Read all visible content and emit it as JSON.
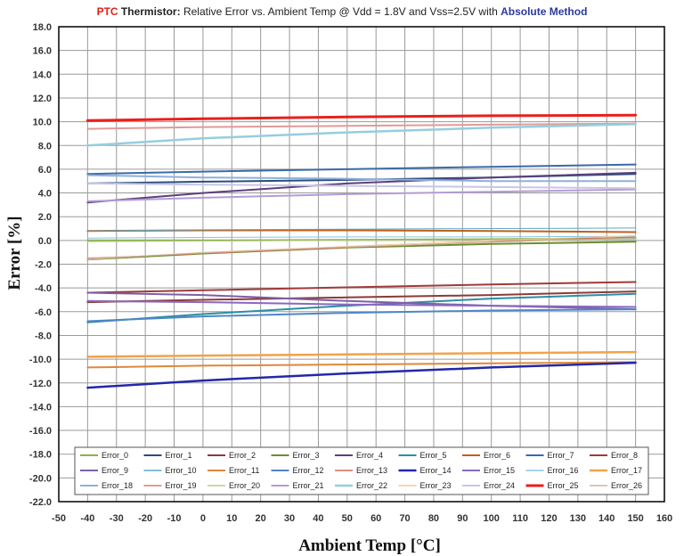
{
  "title": {
    "part1": "PTC",
    "part2": "Thermistor:",
    "part3": " Relative Error vs. Ambient Temp @ Vdd = 1.8V and Vss=2.5V with ",
    "part4": "Absolute Method"
  },
  "chart_data": {
    "type": "line",
    "xlabel": "Ambient Temp [°C]",
    "ylabel": "Error [%]",
    "xlim": [
      -50,
      160
    ],
    "ylim": [
      -22,
      18
    ],
    "x_ticks": [
      "-50",
      "-40",
      "-30",
      "-20",
      "-10",
      "0",
      "10",
      "20",
      "30",
      "40",
      "50",
      "60",
      "70",
      "80",
      "90",
      "100",
      "110",
      "120",
      "130",
      "140",
      "150",
      "160"
    ],
    "y_ticks": [
      "18.0",
      "16.0",
      "14.0",
      "12.0",
      "10.0",
      "8.0",
      "6.0",
      "4.0",
      "2.0",
      "0.0",
      "-2.0",
      "-4.0",
      "-6.0",
      "-8.0",
      "-10.0",
      "-12.0",
      "-14.0",
      "-16.0",
      "-18.0",
      "-20.0",
      "-22.0"
    ],
    "grid": true,
    "legend_position": "bottom",
    "x": [
      -40,
      0,
      50,
      100,
      150
    ],
    "series": [
      {
        "name": "Error_0",
        "color": "#8db04a",
        "width": 2,
        "values": [
          0.0,
          0.0,
          0.05,
          0.1,
          0.2
        ]
      },
      {
        "name": "Error_1",
        "color": "#2a4c7d",
        "width": 2,
        "values": [
          4.8,
          4.95,
          5.1,
          5.3,
          5.6
        ]
      },
      {
        "name": "Error_2",
        "color": "#8b3a3a",
        "width": 2,
        "values": [
          -5.2,
          -5.0,
          -4.8,
          -4.6,
          -4.3
        ]
      },
      {
        "name": "Error_3",
        "color": "#6a8e2e",
        "width": 2,
        "values": [
          -1.6,
          -1.1,
          -0.6,
          -0.3,
          -0.1
        ]
      },
      {
        "name": "Error_4",
        "color": "#5c3f7e",
        "width": 2,
        "values": [
          3.2,
          4.0,
          4.8,
          5.3,
          5.7
        ]
      },
      {
        "name": "Error_5",
        "color": "#2d8ea3",
        "width": 2,
        "values": [
          -6.9,
          -6.2,
          -5.5,
          -4.9,
          -4.5
        ]
      },
      {
        "name": "Error_6",
        "color": "#c0601f",
        "width": 2,
        "values": [
          0.8,
          0.85,
          0.85,
          0.8,
          0.7
        ]
      },
      {
        "name": "Error_7",
        "color": "#3b6aa8",
        "width": 2,
        "values": [
          5.6,
          5.8,
          6.0,
          6.2,
          6.4
        ]
      },
      {
        "name": "Error_8",
        "color": "#a03a3a",
        "width": 2,
        "values": [
          -4.4,
          -4.2,
          -3.95,
          -3.7,
          -3.5
        ]
      },
      {
        "name": "Error_9",
        "color": "#7f5fa8",
        "width": 2,
        "values": [
          -4.4,
          -4.6,
          -5.1,
          -5.5,
          -5.8
        ]
      },
      {
        "name": "Error_10",
        "color": "#5aa9c6",
        "width": 1,
        "values": [
          0.8,
          0.9,
          0.95,
          1.0,
          1.05
        ]
      },
      {
        "name": "Error_11",
        "color": "#e0873a",
        "width": 2,
        "values": [
          -10.7,
          -10.55,
          -10.45,
          -10.35,
          -10.25
        ]
      },
      {
        "name": "Error_12",
        "color": "#4f86c6",
        "width": 2,
        "values": [
          -6.8,
          -6.4,
          -6.1,
          -5.9,
          -5.8
        ]
      },
      {
        "name": "Error_13",
        "color": "#d96a5a",
        "width": 1,
        "values": [
          -1.5,
          -1.1,
          -0.6,
          -0.1,
          0.3
        ]
      },
      {
        "name": "Error_14",
        "color": "#2328a8",
        "width": 2.5,
        "values": [
          -12.4,
          -11.8,
          -11.2,
          -10.7,
          -10.3
        ]
      },
      {
        "name": "Error_15",
        "color": "#8a68c0",
        "width": 2,
        "values": [
          -5.1,
          -5.2,
          -5.4,
          -5.5,
          -5.6
        ]
      },
      {
        "name": "Error_16",
        "color": "#88c5de",
        "width": 1,
        "values": [
          0.2,
          0.25,
          0.3,
          0.3,
          0.35
        ]
      },
      {
        "name": "Error_17",
        "color": "#f2a24a",
        "width": 2.5,
        "values": [
          -9.8,
          -9.7,
          -9.6,
          -9.5,
          -9.4
        ]
      },
      {
        "name": "Error_18",
        "color": "#8fb0da",
        "width": 2,
        "values": [
          5.5,
          5.3,
          5.2,
          5.0,
          5.0
        ]
      },
      {
        "name": "Error_19",
        "color": "#e29a98",
        "width": 2,
        "values": [
          9.4,
          9.55,
          9.65,
          9.75,
          9.85
        ]
      },
      {
        "name": "Error_20",
        "color": "#b8cc8a",
        "width": 1,
        "values": [
          -0.1,
          -0.05,
          0.0,
          0.05,
          0.1
        ]
      },
      {
        "name": "Error_21",
        "color": "#b49cd6",
        "width": 2,
        "values": [
          3.3,
          3.6,
          3.9,
          4.1,
          4.3
        ]
      },
      {
        "name": "Error_22",
        "color": "#96cde0",
        "width": 2.5,
        "values": [
          8.0,
          8.6,
          9.1,
          9.5,
          9.8
        ]
      },
      {
        "name": "Error_23",
        "color": "#f3c59a",
        "width": 1,
        "values": [
          -1.6,
          -1.0,
          -0.5,
          0.0,
          0.4
        ]
      },
      {
        "name": "Error_24",
        "color": "#c7c6e6",
        "width": 2,
        "values": [
          4.8,
          4.7,
          4.6,
          4.5,
          4.4
        ]
      },
      {
        "name": "Error_25",
        "color": "#e8201c",
        "width": 3,
        "values": [
          10.1,
          10.25,
          10.4,
          10.5,
          10.55
        ]
      },
      {
        "name": "Error_26",
        "color": "#c9b5a0",
        "width": 1,
        "values": [
          -1.55,
          -1.05,
          -0.55,
          -0.15,
          0.2
        ]
      }
    ]
  }
}
